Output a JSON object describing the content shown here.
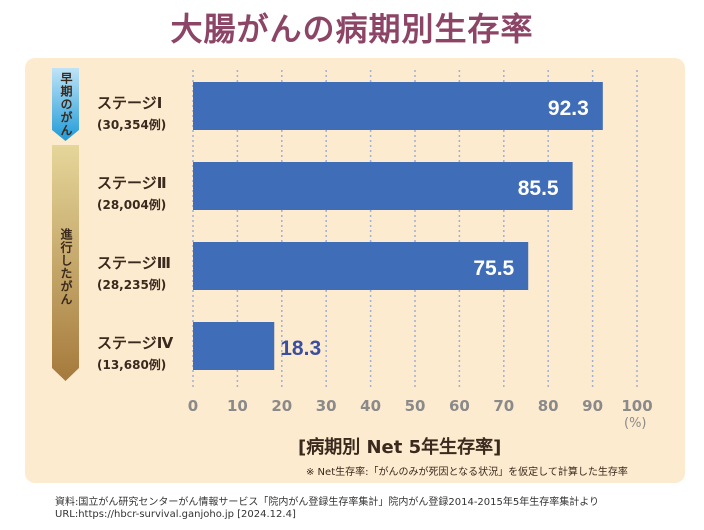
{
  "title": "大腸がんの病期別生存率",
  "groups": {
    "early": "早期のがん",
    "advanced": "進行したがん"
  },
  "colors": {
    "bar": "#3f6db8",
    "title": "#8c4566",
    "panel": "#fdebd0",
    "outside_label": "#3a4fa0"
  },
  "chart_data": {
    "type": "bar",
    "orientation": "horizontal",
    "title": "[病期別 Net 5年生存率]",
    "categories": [
      "ステージⅠ",
      "ステージⅡ",
      "ステージⅢ",
      "ステージⅣ"
    ],
    "case_counts": [
      "(30,354例)",
      "(28,004例)",
      "(28,235例)",
      "(13,680例)"
    ],
    "values": [
      92.3,
      85.5,
      75.5,
      18.3
    ],
    "value_labels": [
      "92.3",
      "85.5",
      "75.5",
      "18.3"
    ],
    "xlim": [
      0,
      100
    ],
    "xticks": [
      "0",
      "10",
      "20",
      "30",
      "40",
      "50",
      "60",
      "70",
      "80",
      "90",
      "100"
    ],
    "xunit": "(%)",
    "grid": "vertical dotted"
  },
  "note": "※ Net生存率:「がんのみが死因となる状況」を仮定して計算した生存率",
  "source": "資料:国立がん研究センターがん情報サービス「院内がん登録生存率集計」院内がん登録2014-2015年5年生存率集計より",
  "url": "URL:https://hbcr-survival.ganjoho.jp [2024.12.4]"
}
